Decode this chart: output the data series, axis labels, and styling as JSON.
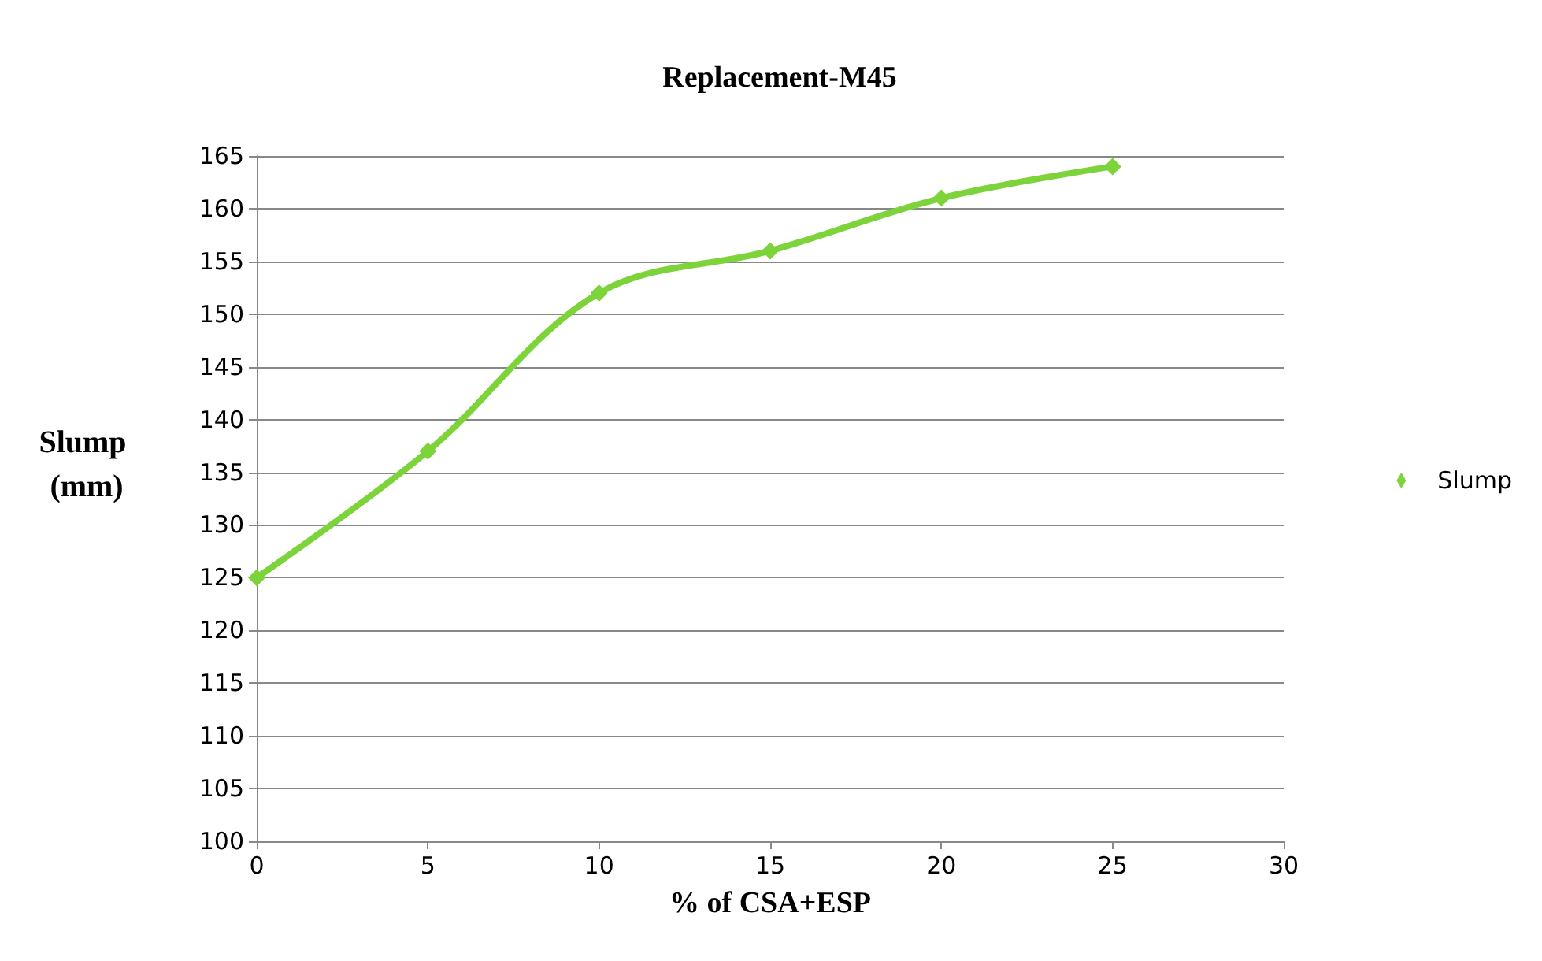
{
  "chart_data": {
    "type": "line",
    "title": "Replacement-M45",
    "xlabel": "% of CSA+ESP",
    "ylabel": "Slump (mm)",
    "x": [
      0,
      5,
      10,
      15,
      20,
      25
    ],
    "series": [
      {
        "name": "Slump",
        "color": "#7dd33a",
        "values": [
          125,
          137,
          152,
          156,
          161,
          164
        ]
      }
    ],
    "xlim": [
      0,
      30
    ],
    "xticks": [
      0,
      5,
      10,
      15,
      20,
      25,
      30
    ],
    "ylim": [
      100,
      165
    ],
    "yticks": [
      100,
      105,
      110,
      115,
      120,
      125,
      130,
      135,
      140,
      145,
      150,
      155,
      160,
      165
    ],
    "grid": "y",
    "legend": "right",
    "marker": "diamond",
    "line_style": "solid"
  }
}
